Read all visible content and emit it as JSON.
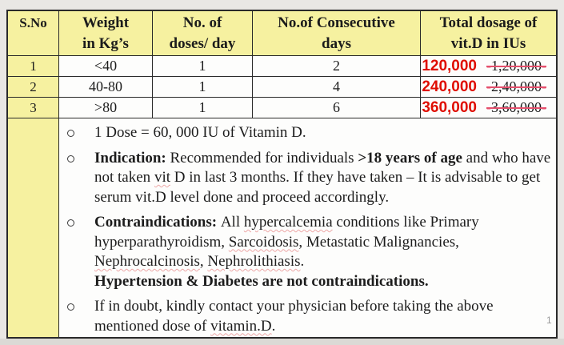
{
  "colors": {
    "header_yellow": "#f6f1a0",
    "accent_red": "#df0d00",
    "strike_pink": "#e5506d",
    "background_gray": "#e9e7e4",
    "border_black": "#2a2a2a"
  },
  "icons": {
    "bullet": "circle-outline-icon"
  },
  "page": {
    "number": "1"
  },
  "table": {
    "strike_dash": "-",
    "headers": [
      {
        "line1": "S.No",
        "line2": ""
      },
      {
        "line1": "Weight",
        "line2": "in Kg’s"
      },
      {
        "line1": "No. of",
        "line2": "doses/ day"
      },
      {
        "line1": "No.of Consecutive",
        "line2": "days"
      },
      {
        "line1": "Total dosage of",
        "line2": "vit.D in IUs"
      }
    ],
    "rows": [
      {
        "sno": "1",
        "weight": "<40",
        "doses_per_day": "1",
        "consecutive_days": "2",
        "corrected_dosage": "120,000",
        "original_dosage": "1,20,000"
      },
      {
        "sno": "2",
        "weight": "40-80",
        "doses_per_day": "1",
        "consecutive_days": "4",
        "corrected_dosage": "240,000",
        "original_dosage": "2,40,000"
      },
      {
        "sno": "3",
        "weight": ">80",
        "doses_per_day": "1",
        "consecutive_days": "6",
        "corrected_dosage": "360,000",
        "original_dosage": "3,60,000"
      }
    ]
  },
  "notes": [
    {
      "segments": [
        {
          "t": "1 Dose = 60, 000 IU of Vitamin D."
        }
      ]
    },
    {
      "segments": [
        {
          "t": "Indication: ",
          "b": true
        },
        {
          "t": "Recommended for individuals "
        },
        {
          "t": ">18 years of age",
          "b": true
        },
        {
          "t": " and who have"
        },
        {
          "br": true
        },
        {
          "t": "not taken "
        },
        {
          "t": "vit",
          "w": true
        },
        {
          "t": " D in last 3 months. If they have taken – It is advisable to get"
        },
        {
          "br": true
        },
        {
          "t": "serum vit.D level done and proceed accordingly."
        }
      ]
    },
    {
      "segments": [
        {
          "t": "Contraindications: ",
          "b": true
        },
        {
          "t": "All "
        },
        {
          "t": "hypercalcemia",
          "w": true
        },
        {
          "t": " conditions like Primary"
        },
        {
          "br": true
        },
        {
          "t": "hyperparathyroidism, "
        },
        {
          "t": "Sarcoidosis",
          "w": true
        },
        {
          "t": ", Metastatic Malignancies,"
        },
        {
          "br": true
        },
        {
          "t": "Nephrocalcinosis",
          "w": true
        },
        {
          "t": ", "
        },
        {
          "t": "Nephrolithiasis",
          "w": true
        },
        {
          "t": "."
        },
        {
          "br": true
        },
        {
          "t": "Hypertension & Diabetes are not contraindications.",
          "b": true
        }
      ]
    },
    {
      "segments": [
        {
          "t": "If in doubt, kindly contact your physician before taking the above"
        },
        {
          "br": true
        },
        {
          "t": "mentioned dose of "
        },
        {
          "t": "vitamin.D",
          "w": true
        },
        {
          "t": "."
        }
      ]
    }
  ]
}
